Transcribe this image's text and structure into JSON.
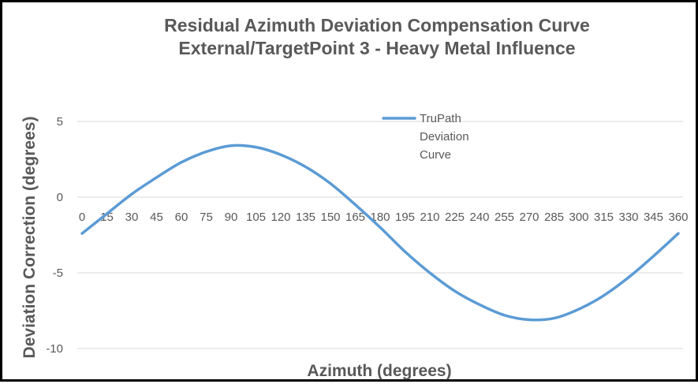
{
  "chart_data": {
    "type": "line",
    "title": [
      "Residual Azimuth Deviation Compensation Curve",
      "External/TargetPoint 3 - Heavy Metal Influence"
    ],
    "xlabel": "Azimuth (degrees)",
    "ylabel": "Deviation Correction (degrees)",
    "x": [
      0,
      15,
      30,
      45,
      60,
      75,
      90,
      105,
      120,
      135,
      150,
      165,
      180,
      195,
      210,
      225,
      240,
      255,
      270,
      285,
      300,
      315,
      330,
      345,
      360
    ],
    "x_tick_labels": [
      "0",
      "15",
      "30",
      "45",
      "60",
      "75",
      "90",
      "105",
      "120",
      "135",
      "150",
      "165",
      "180",
      "195",
      "210",
      "225",
      "240",
      "255",
      "270",
      "285",
      "300",
      "315",
      "330",
      "345",
      "360"
    ],
    "ylim": [
      -10,
      5
    ],
    "y_ticks": [
      5,
      0,
      -5,
      -10
    ],
    "y_tick_labels": [
      "5",
      "0",
      "-5",
      "-10"
    ],
    "grid": true,
    "legend_position": "top-center",
    "series": [
      {
        "name": "TruPath Deviation Curve",
        "legend_lines": [
          "TruPath",
          "Deviation",
          "Curve"
        ],
        "color": "#5b9bd5",
        "values": [
          -2.4,
          -1.1,
          0.2,
          1.3,
          2.3,
          3.0,
          3.4,
          3.3,
          2.8,
          2.0,
          0.9,
          -0.5,
          -2.0,
          -3.6,
          -5.0,
          -6.2,
          -7.1,
          -7.8,
          -8.1,
          -8.0,
          -7.4,
          -6.5,
          -5.3,
          -3.9,
          -2.4
        ]
      }
    ]
  }
}
